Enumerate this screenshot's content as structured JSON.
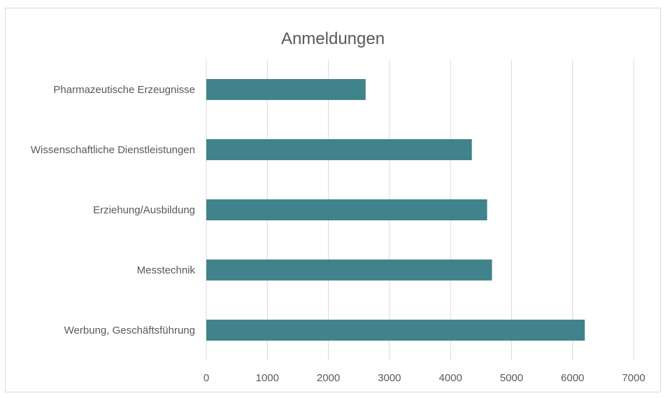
{
  "chart_data": {
    "type": "bar",
    "orientation": "horizontal",
    "title": "Anmeldungen",
    "xlabel": "",
    "ylabel": "",
    "categories": [
      "Pharmazeutische Erzeugnisse",
      "Wissenschaftliche Dienstleistungen",
      "Erziehung/Ausbildung",
      "Messtechnik",
      "Werbung, Geschäftsführung"
    ],
    "values": [
      2610,
      4350,
      4600,
      4680,
      6200
    ],
    "xlim": [
      0,
      7000
    ],
    "ticks": [
      "0",
      "1000",
      "2000",
      "3000",
      "4000",
      "5000",
      "6000",
      "7000"
    ],
    "grid": "vertical",
    "legend": "none",
    "bar_color": "#41838a",
    "grid_color": "#d9d9d9"
  }
}
